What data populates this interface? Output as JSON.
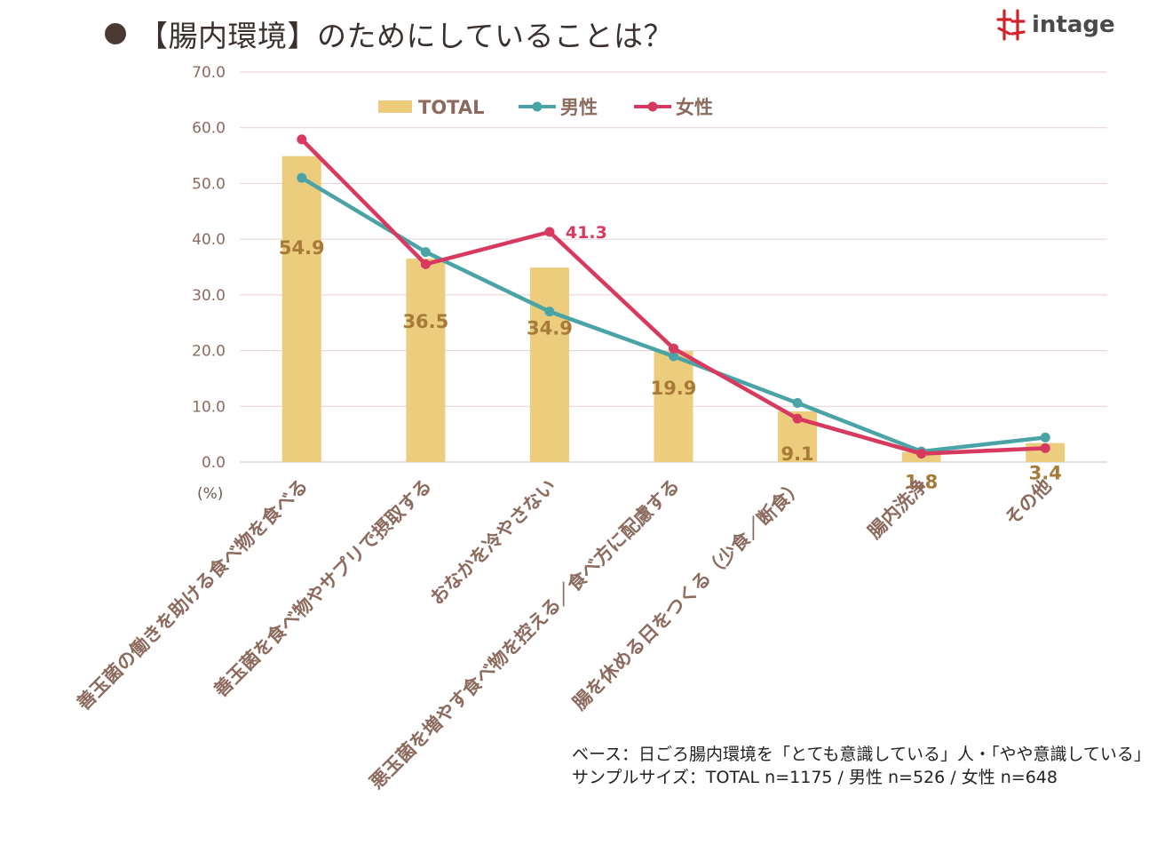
{
  "header": {
    "title": "【腸内環境】のためにしていることは？",
    "brand": "intage"
  },
  "footer": {
    "base_note": "ベース：日ごろ腸内環境を「とても意識している」人・「やや意識している」人",
    "sample_note": "サンプルサイズ：TOTAL n=1175 / 男性 n=526 / 女性 n=648"
  },
  "chart_data": {
    "type": "bar",
    "title": "",
    "unit_label": "(%)",
    "ylim": [
      0,
      70
    ],
    "yticks": [
      "0.0",
      "10.0",
      "20.0",
      "30.0",
      "40.0",
      "50.0",
      "60.0",
      "70.0"
    ],
    "grid": true,
    "legend_position": "top",
    "categories": [
      "善玉菌の働きを助ける食べ物を食べる",
      "善玉菌を食べ物やサプリで摂取する",
      "おなかを冷やさない",
      "悪玉菌を増やす食べ物を控える／食べ方に配慮する",
      "腸を休める日をつくる（少食／断食）",
      "腸内洗浄",
      "その他"
    ],
    "series": [
      {
        "name": "TOTAL",
        "kind": "bar",
        "color": "#ebcd7d",
        "values": [
          54.9,
          36.5,
          34.9,
          19.9,
          9.1,
          1.8,
          3.4
        ],
        "labels": [
          "54.9",
          "36.5",
          "34.9",
          "19.9",
          "9.1",
          "1.8",
          "3.4"
        ],
        "label_color": "#a87a3a"
      },
      {
        "name": "男性",
        "kind": "line",
        "color": "#4aa3a6",
        "values": [
          51.0,
          37.7,
          27.0,
          19.0,
          10.6,
          1.9,
          4.4
        ]
      },
      {
        "name": "女性",
        "kind": "line",
        "color": "#d8395f",
        "values": [
          57.9,
          35.5,
          41.3,
          20.4,
          7.8,
          1.5,
          2.5
        ],
        "highlight_label": {
          "index": 2,
          "text": "41.3"
        }
      }
    ],
    "colors": {
      "grid": "#e6cfd2",
      "tick_text": "#8c6b5e",
      "category_text": "#8c6b5e",
      "legend_text": "#8c6b5e"
    }
  }
}
